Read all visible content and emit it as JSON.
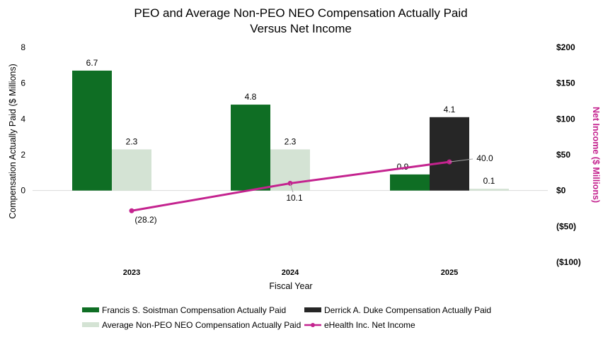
{
  "chart_data": {
    "type": "bar",
    "title_lines": [
      "PEO and Average Non-PEO NEO Compensation Actually Paid",
      "Versus Net Income"
    ],
    "xlabel": "Fiscal Year",
    "ylabel": "Compensation Actually Paid ($ Millions)",
    "y2label": "Net Income ($ Millions)",
    "categories": [
      "2023",
      "2024",
      "2025"
    ],
    "ylim": [
      -4,
      8
    ],
    "yticks": [
      "0",
      "2",
      "4",
      "6",
      "8"
    ],
    "y2lim": [
      -100,
      200
    ],
    "y2ticks": [
      "($100)",
      "($50)",
      "$0",
      "$50",
      "$100",
      "$150",
      "$200"
    ],
    "bar_series": [
      {
        "name": "Francis S. Soistman Compensation Actually Paid",
        "color": "#0f6e24",
        "values": [
          6.7,
          4.8,
          0.9
        ],
        "labels": [
          "6.7",
          "4.8",
          "0.9"
        ]
      },
      {
        "name": "Derrick A. Duke Compensation Actually Paid",
        "color": "#262626",
        "values": [
          null,
          null,
          4.1
        ],
        "labels": [
          "",
          "",
          "4.1"
        ]
      },
      {
        "name": "Average Non-PEO NEO Compensation Actually Paid",
        "color": "#d4e3d4",
        "values": [
          2.3,
          2.3,
          0.1
        ],
        "labels": [
          "2.3",
          "2.3",
          "0.1"
        ]
      }
    ],
    "line_series": {
      "name": "eHealth Inc. Net Income",
      "color": "#c4238f",
      "axis": "right",
      "values": [
        -28.2,
        10.1,
        40.0
      ],
      "labels": [
        "(28.2)",
        "10.1",
        "40.0"
      ]
    },
    "legend_position": "bottom",
    "grid": false
  }
}
